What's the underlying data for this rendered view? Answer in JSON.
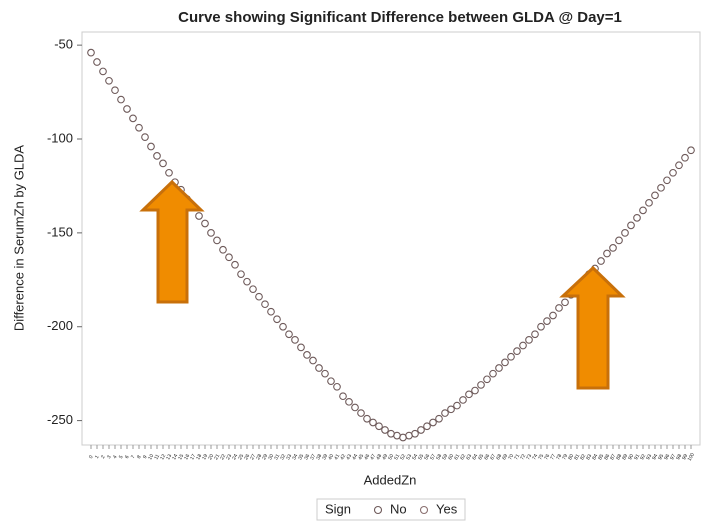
{
  "chart_data": {
    "type": "scatter",
    "title": "Curve showing Significant Difference between GLDA @ Day=1",
    "x_label": "AddedZn",
    "y_label": "Difference in SerumZn by GLDA",
    "legend_title": "Sign",
    "categories": [
      "0",
      "1",
      "2",
      "3",
      "4",
      "5",
      "6",
      "7",
      "8",
      "9",
      "10",
      "11",
      "12",
      "13",
      "14",
      "15",
      "16",
      "17",
      "18",
      "19",
      "20",
      "21",
      "22",
      "23",
      "24",
      "25",
      "26",
      "27",
      "28",
      "29",
      "30",
      "31",
      "32",
      "33",
      "34",
      "35",
      "36",
      "37",
      "38",
      "39",
      "40",
      "41",
      "42",
      "43",
      "44",
      "45",
      "46",
      "47",
      "48",
      "49",
      "50",
      "51",
      "52",
      "53",
      "54",
      "55",
      "56",
      "57",
      "58",
      "59",
      "60",
      "61",
      "62",
      "63",
      "64",
      "65",
      "66",
      "67",
      "68",
      "69",
      "70",
      "71",
      "72",
      "73",
      "74",
      "75",
      "76",
      "77",
      "78",
      "79",
      "80",
      "81",
      "82",
      "83",
      "84",
      "85",
      "86",
      "87",
      "88",
      "89",
      "90",
      "91",
      "92",
      "93",
      "94",
      "95",
      "96",
      "97",
      "98",
      "99",
      "100"
    ],
    "series": [
      {
        "name": "No",
        "color": "#6e5a5a",
        "values": [
          -54,
          -59,
          -64,
          -69,
          -74,
          -79,
          -84,
          -89,
          -94,
          -99,
          -104,
          -109,
          -113,
          -118,
          -123,
          -127,
          -132,
          -136,
          -141,
          -145,
          -150,
          -154,
          -159,
          -163,
          -167,
          -172,
          -176,
          -180,
          -184,
          -188,
          -192,
          -196,
          -200,
          -204,
          -207,
          -211,
          -215,
          -218,
          -222,
          -225,
          -229,
          -232,
          -237,
          -240,
          -243,
          -246,
          -249,
          -251,
          -253,
          -255,
          -257,
          -258,
          -259,
          -258,
          -257,
          -255,
          -253,
          -251,
          -249,
          -246,
          -244,
          -242,
          -239,
          -236,
          -234,
          -231,
          -228,
          -225,
          -222,
          -219,
          -216,
          -213,
          -210,
          -207,
          -204,
          -200,
          -197,
          -194,
          -190,
          -187,
          -183,
          -180,
          -176,
          -172,
          -169,
          -165,
          -161,
          -158,
          -154,
          -150,
          -146,
          -142,
          -138,
          -134,
          -130,
          -126,
          -122,
          -118,
          -114,
          -110,
          -106
        ]
      },
      {
        "name": "Yes",
        "color": "#8a7070",
        "values": [
          null,
          null,
          null,
          null,
          null,
          null,
          null,
          null,
          null,
          null,
          null,
          null,
          null,
          null,
          null,
          null,
          null,
          null,
          null,
          null,
          null,
          null,
          null,
          null,
          null,
          null,
          null,
          null,
          null,
          null,
          null,
          null,
          null,
          null,
          null,
          null,
          null,
          null,
          null,
          null,
          null,
          null,
          null,
          null,
          null,
          null,
          null,
          null,
          null,
          null,
          null,
          null,
          null,
          null,
          null,
          null,
          null,
          null,
          null,
          null,
          null,
          null,
          null,
          null,
          null,
          null,
          null,
          null,
          null,
          null,
          null,
          null,
          null,
          null,
          null,
          null,
          null,
          null,
          null,
          null,
          null,
          null,
          null,
          null,
          null,
          null,
          null,
          null,
          null,
          null,
          null,
          null,
          null,
          null,
          null,
          null,
          null,
          null,
          null,
          null,
          null
        ]
      }
    ],
    "ylim": [
      -263,
      -43
    ],
    "yticks": [
      -250,
      -200,
      -150,
      -100,
      -50
    ]
  }
}
